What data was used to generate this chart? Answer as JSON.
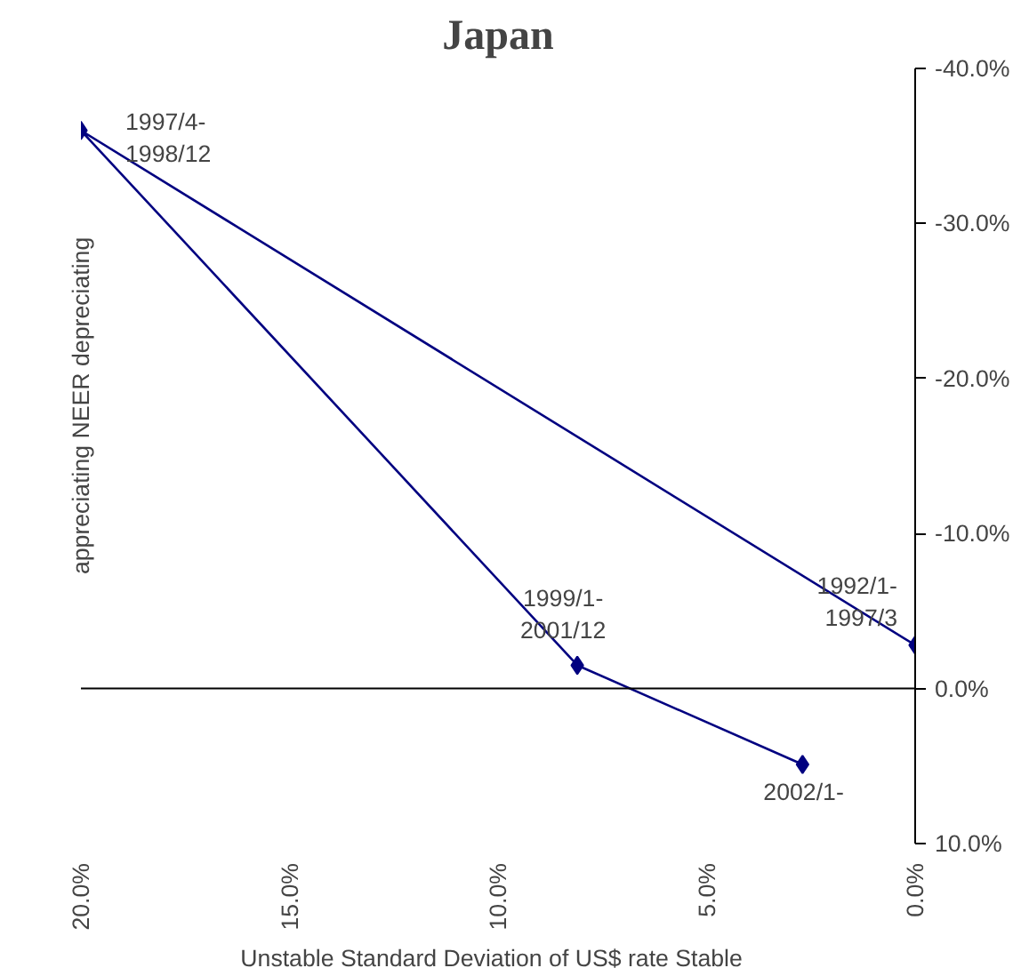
{
  "chart_data": {
    "type": "line",
    "title": "Japan",
    "xlabel": "Unstable  Standard Deviation of US$ rate  Stable",
    "ylabel": "appreciating  NEER  depreciating",
    "x": [
      0,
      20,
      8.1,
      2.7
    ],
    "series": [
      {
        "color": "#000080",
        "values": [
          -2.8,
          -36,
          -1.5,
          4.9
        ]
      }
    ],
    "marker": "diamond",
    "line_style": "solid",
    "grid": false,
    "xlim": [
      20,
      0
    ],
    "ylim": [
      10,
      -40
    ],
    "xticks": [
      {
        "value": 20,
        "label": "20.0%"
      },
      {
        "value": 15,
        "label": "15.0%"
      },
      {
        "value": 10,
        "label": "10.0%"
      },
      {
        "value": 5,
        "label": "5.0%"
      },
      {
        "value": 0,
        "label": "0.0%"
      }
    ],
    "yticks": [
      {
        "value": -40,
        "label": "-40.0%"
      },
      {
        "value": -30,
        "label": "-30.0%"
      },
      {
        "value": -20,
        "label": "-20.0%"
      },
      {
        "value": -10,
        "label": "-10.0%"
      },
      {
        "value": 0,
        "label": "0.0%"
      },
      {
        "value": 10,
        "label": "10.0%"
      }
    ],
    "ref_lines": [
      {
        "axis": "y",
        "value": 0,
        "color": "#000000"
      }
    ],
    "annotations": [
      {
        "text": "1992/1-\n1997/3",
        "x": 0,
        "y": -2.8
      },
      {
        "text": "1997/4-\n1998/12",
        "x": 20,
        "y": -36
      },
      {
        "text": "1999/1-\n2001/12",
        "x": 8.1,
        "y": -1.5
      },
      {
        "text": "2002/1-",
        "x": 2.7,
        "y": 4.9
      }
    ]
  }
}
